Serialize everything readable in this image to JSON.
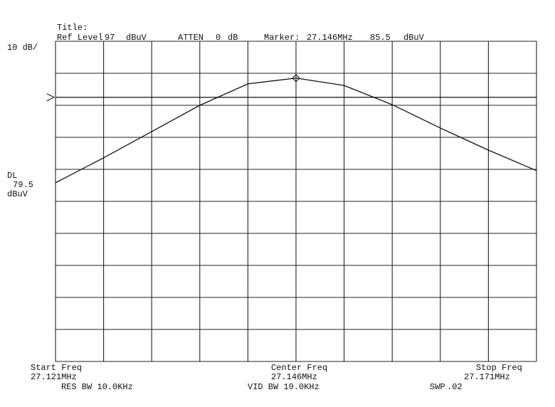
{
  "chart_data": {
    "type": "line",
    "header": {
      "title_label": "Title:",
      "ref_level_label": "Ref Level",
      "ref_level": 97,
      "ref_unit": "dBuV",
      "atten_label": "ATTEN",
      "atten": 0,
      "atten_unit": "dB",
      "marker_label": "Marker:",
      "marker_freq": {
        "value": 27.146,
        "label": "27.146MHz"
      },
      "marker_level": 85.5,
      "marker_unit": "dBuV"
    },
    "scale_label": "10 dB/",
    "display_line": {
      "label": "DL",
      "value": 79.5,
      "unit": "dBuV"
    },
    "footer": {
      "start_label": "Start Freq",
      "start_freq": {
        "value": 27.121,
        "label": "27.121MHz"
      },
      "center_label": "Center Freq",
      "center_freq": {
        "value": 27.146,
        "label": "27.146MHz"
      },
      "stop_label": "Stop Freq",
      "stop_freq": {
        "value": 27.171,
        "label": "27.171MHz"
      },
      "res_bw": "RES BW 10.0KHz",
      "vid_bw": "VID BW 10.0KHz",
      "swp_label": "SWP",
      "swp": ".02"
    },
    "x": [
      27.121,
      27.126,
      27.131,
      27.136,
      27.141,
      27.146,
      27.151,
      27.156,
      27.161,
      27.166,
      27.171
    ],
    "series": [
      {
        "name": "trace",
        "color": "#111111",
        "values": [
          52.8,
          60.6,
          68.8,
          77.0,
          83.7,
          85.5,
          83.2,
          77.2,
          69.9,
          63.0,
          56.6
        ]
      }
    ],
    "xlim": [
      27.121,
      27.171
    ],
    "ylim": [
      -3,
      97
    ],
    "xticks": [
      27.121,
      27.126,
      27.131,
      27.136,
      27.141,
      27.146,
      27.151,
      27.156,
      27.161,
      27.166,
      27.171
    ],
    "yticks": [
      -3,
      7,
      17,
      27,
      37,
      47,
      57,
      67,
      77,
      87,
      97
    ],
    "grid": true
  }
}
